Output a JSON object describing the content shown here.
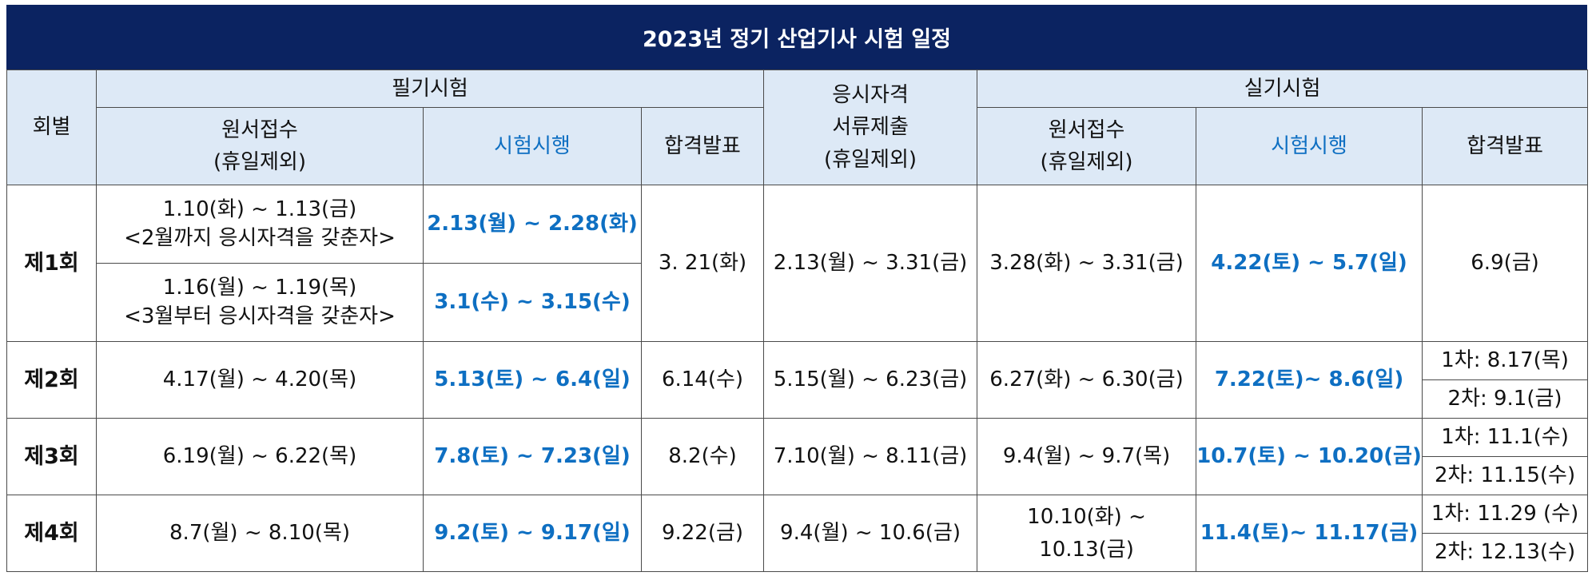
{
  "title": "2023년 정기 산업기사 시험 일정",
  "header": {
    "round": "회별",
    "written": "필기시험",
    "written_apply_l1": "원서접수",
    "written_apply_l2": "(휴일제외)",
    "written_exam": "시험시행",
    "written_result": "합격발표",
    "docs_l1": "응시자격",
    "docs_l2": "서류제출",
    "docs_l3": "(휴일제외)",
    "practical": "실기시험",
    "practical_apply_l1": "원서접수",
    "practical_apply_l2": "(휴일제외)",
    "practical_exam": "시험시행",
    "practical_result": "합격발표"
  },
  "rows": [
    {
      "round": "제1회",
      "written_apply_a_l1": "1.10(화) ~ 1.13(금)",
      "written_apply_a_l2": "<2월까지 응시자격을 갖춘자>",
      "written_exam_a": "2.13(월) ~ 2.28(화)",
      "written_apply_b_l1": "1.16(월) ~ 1.19(목)",
      "written_apply_b_l2": "<3월부터 응시자격을 갖춘자>",
      "written_exam_b": "3.1(수) ~ 3.15(수)",
      "written_result": "3. 21(화)",
      "docs": "2.13(월) ~ 3.31(금)",
      "practical_apply": "3.28(화) ~ 3.31(금)",
      "practical_exam": "4.22(토) ~ 5.7(일)",
      "practical_result": "6.9(금)"
    },
    {
      "round": "제2회",
      "written_apply": "4.17(월) ~ 4.20(목)",
      "written_exam": "5.13(토) ~ 6.4(일)",
      "written_result": "6.14(수)",
      "docs": "5.15(월) ~ 6.23(금)",
      "practical_apply": "6.27(화) ~ 6.30(금)",
      "practical_exam": "7.22(토)~ 8.6(일)",
      "practical_result_1": "1차: 8.17(목)",
      "practical_result_2": "2차: 9.1(금)"
    },
    {
      "round": "제3회",
      "written_apply": "6.19(월) ~ 6.22(목)",
      "written_exam": "7.8(토) ~ 7.23(일)",
      "written_result": "8.2(수)",
      "docs": "7.10(월) ~ 8.11(금)",
      "practical_apply": "9.4(월) ~ 9.7(목)",
      "practical_exam": "10.7(토) ~ 10.20(금)",
      "practical_result_1": "1차: 11.1(수)",
      "practical_result_2": "2차: 11.15(수)"
    },
    {
      "round": "제4회",
      "written_apply": "8.7(월) ~ 8.10(목)",
      "written_exam": "9.2(토) ~ 9.17(일)",
      "written_result": "9.22(금)",
      "docs": "9.4(월) ~ 10.6(금)",
      "practical_apply": "10.10(화) ~ 10.13(금)",
      "practical_exam": "11.4(토)~ 11.17(금)",
      "practical_result_1": "1차: 11.29 (수)",
      "practical_result_2": "2차: 12.13(수)"
    }
  ],
  "colors": {
    "title_bg": "#0b2361",
    "header_bg": "#dde9f6",
    "accent_blue": "#0e6fc2"
  }
}
